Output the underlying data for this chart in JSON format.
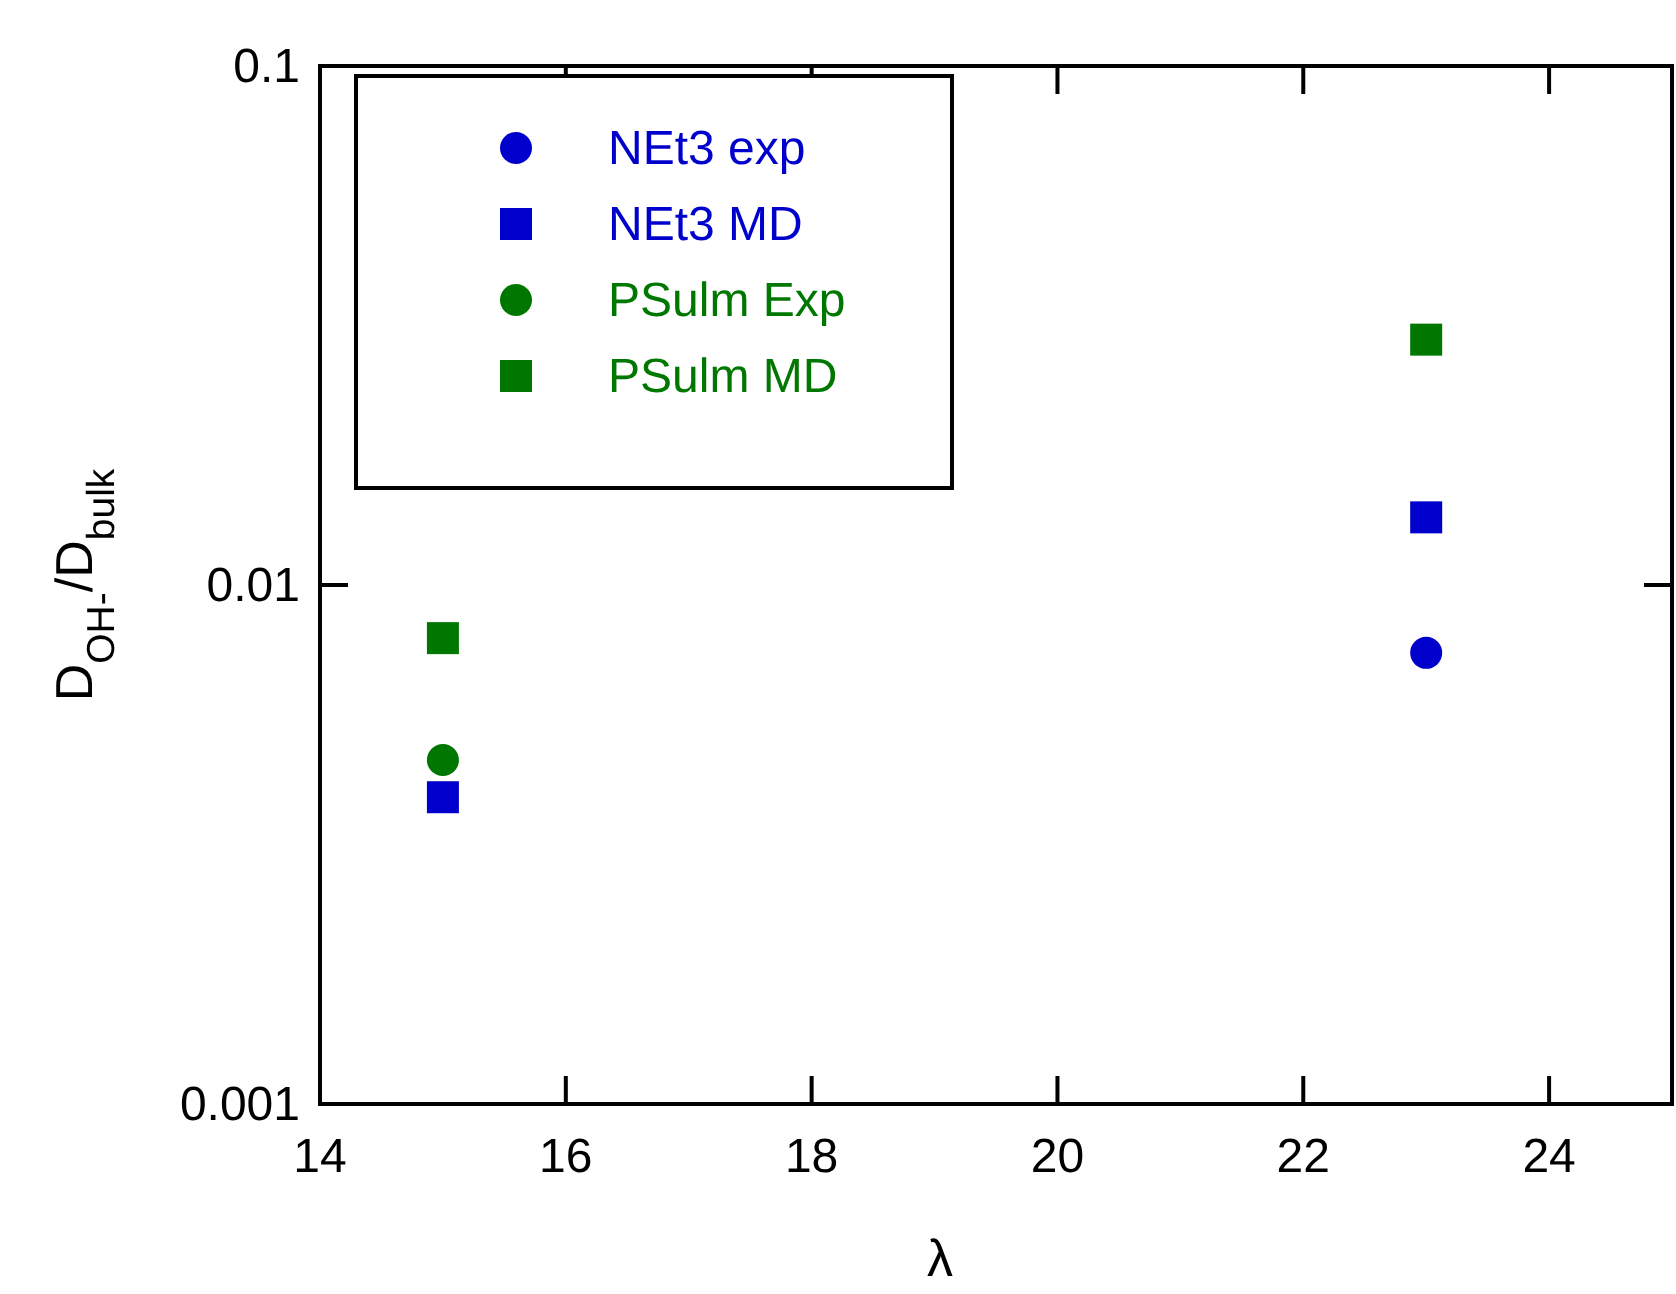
{
  "chart_data": {
    "type": "scatter",
    "xlabel": "λ",
    "ylabel": "D$_{OH-}$/D$_{bulk}$",
    "x": [
      15,
      23
    ],
    "log": "y",
    "xlim": [
      14,
      25
    ],
    "xticks": [
      14,
      16,
      18,
      20,
      22,
      24
    ],
    "ylim": [
      0.001,
      0.1
    ],
    "yticks": [
      0.001,
      0.01,
      0.1
    ],
    "grid": false,
    "legend": "top left",
    "series": [
      {
        "name": "NEt3 exp",
        "color": "#0000cc",
        "marker": "circle",
        "values": [
          null,
          0.0074
        ]
      },
      {
        "name": "NEt3 MD",
        "color": "#0000cc",
        "marker": "square",
        "values": [
          0.0039,
          0.0135
        ]
      },
      {
        "name": "PSulm Exp",
        "color": "#007700",
        "marker": "circle",
        "values": [
          0.0046,
          null
        ]
      },
      {
        "name": "PSulm MD",
        "color": "#007700",
        "marker": "square",
        "values": [
          0.0079,
          0.0297
        ]
      }
    ]
  }
}
